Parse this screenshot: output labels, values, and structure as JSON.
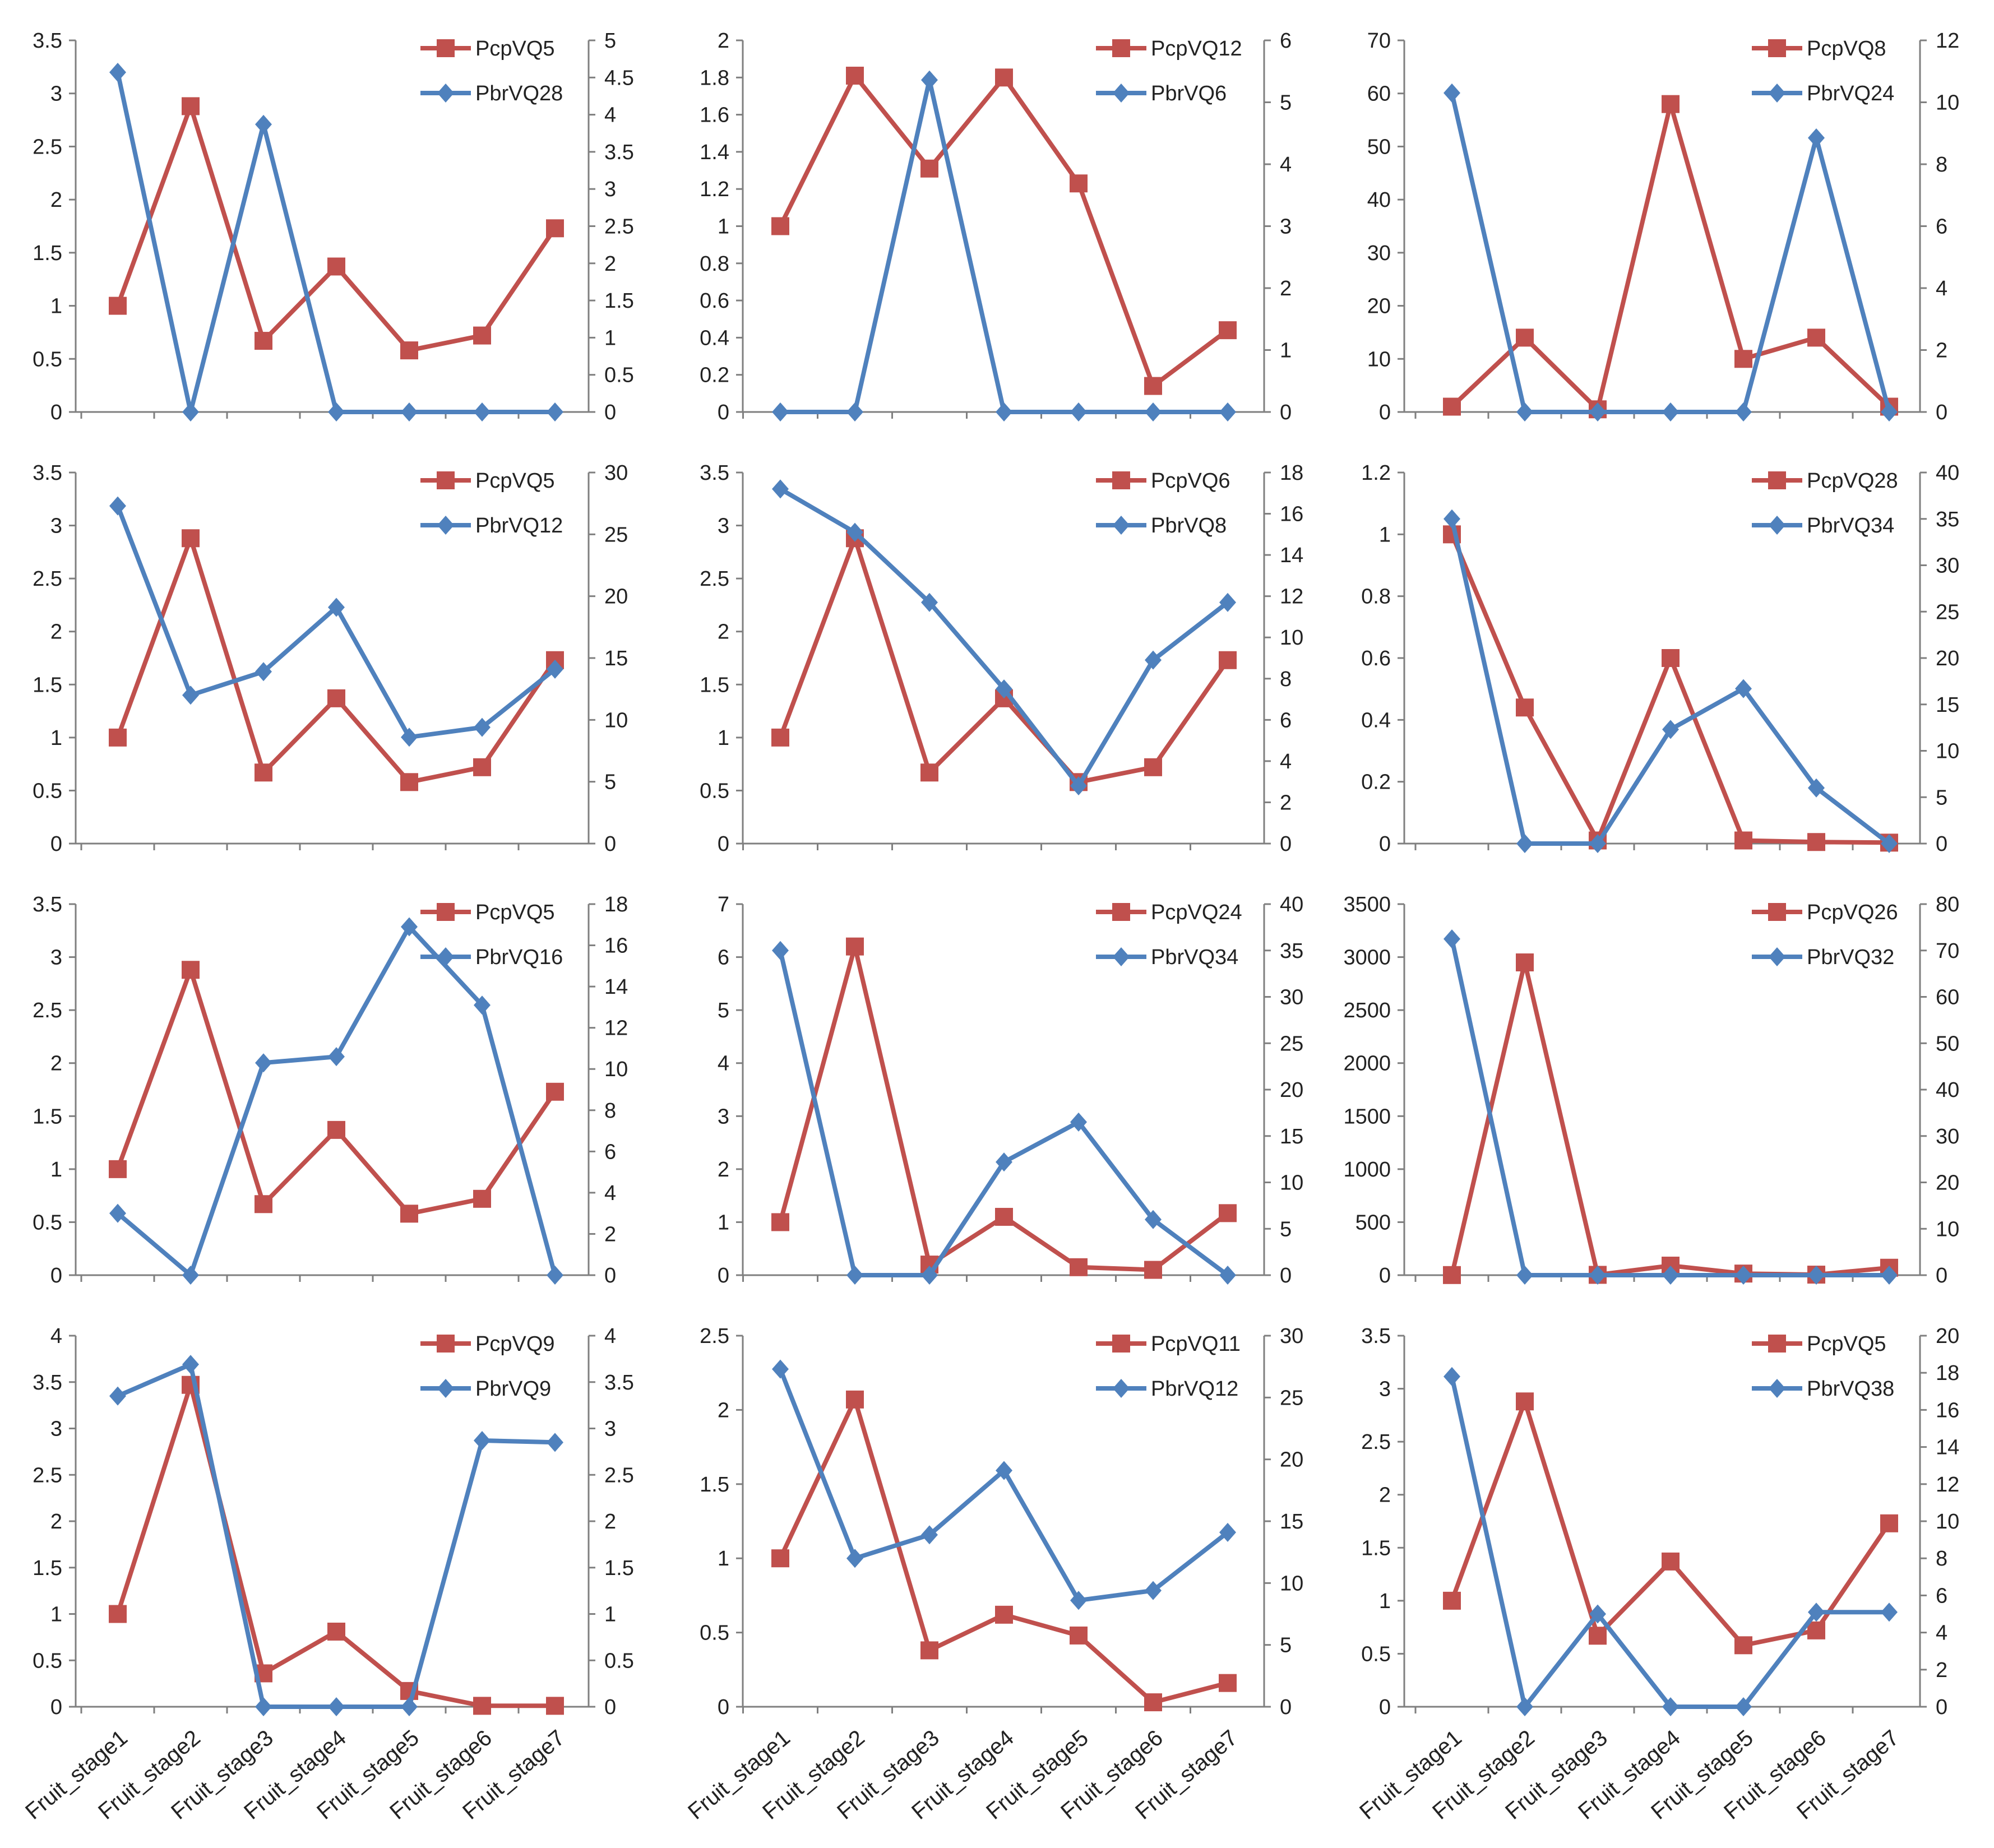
{
  "chart_data": [
    {
      "type": "line",
      "categories": [
        "Fruit_stage1",
        "Fruit_stage2",
        "Fruit_stage3",
        "Fruit_stage4",
        "Fruit_stage5",
        "Fruit_stage6",
        "Fruit_stage7"
      ],
      "series": [
        {
          "name": "PcpVQ5",
          "axis": "left",
          "values": [
            1,
            2.88,
            0.67,
            1.37,
            0.58,
            0.72,
            1.73
          ]
        },
        {
          "name": "PbrVQ28",
          "axis": "right",
          "values": [
            4.57,
            0,
            3.87,
            0,
            0,
            0,
            0
          ]
        }
      ],
      "ylim": [
        0,
        3.5
      ],
      "yticks": [
        0,
        0.5,
        1,
        1.5,
        2,
        2.5,
        3,
        3.5
      ],
      "ytick_labels": [
        "0",
        "0.5",
        "1",
        "1.5",
        "2",
        "2.5",
        "3",
        "3.5"
      ],
      "y2lim": [
        0,
        5
      ],
      "y2ticks": [
        0,
        0.5,
        1,
        1.5,
        2,
        2.5,
        3,
        3.5,
        4,
        4.5,
        5
      ],
      "y2tick_labels": [
        "0",
        "0.5",
        "1",
        "1.5",
        "2",
        "2.5",
        "3",
        "3.5",
        "4",
        "4.5",
        "5"
      ],
      "legend": "top-right"
    },
    {
      "type": "line",
      "categories": [
        "Fruit_stage1",
        "Fruit_stage2",
        "Fruit_stage3",
        "Fruit_stage4",
        "Fruit_stage5",
        "Fruit_stage6",
        "Fruit_stage7"
      ],
      "series": [
        {
          "name": "PcpVQ12",
          "axis": "left",
          "values": [
            1,
            1.81,
            1.31,
            1.8,
            1.23,
            0.14,
            0.44
          ]
        },
        {
          "name": "PbrVQ6",
          "axis": "right",
          "values": [
            0,
            0,
            5.36,
            0,
            0,
            0,
            0
          ]
        }
      ],
      "ylim": [
        0,
        2
      ],
      "yticks": [
        0,
        0.2,
        0.4,
        0.6,
        0.8,
        1,
        1.2,
        1.4,
        1.6,
        1.8,
        2
      ],
      "ytick_labels": [
        "0",
        "0.2",
        "0.4",
        "0.6",
        "0.8",
        "1",
        "1.2",
        "1.4",
        "1.6",
        "1.8",
        "2"
      ],
      "y2lim": [
        0,
        6
      ],
      "y2ticks": [
        0,
        1,
        2,
        3,
        4,
        5,
        6
      ],
      "y2tick_labels": [
        "0",
        "1",
        "2",
        "3",
        "4",
        "5",
        "6"
      ],
      "legend": "top-right"
    },
    {
      "type": "line",
      "categories": [
        "Fruit_stage1",
        "Fruit_stage2",
        "Fruit_stage3",
        "Fruit_stage4",
        "Fruit_stage5",
        "Fruit_stage6",
        "Fruit_stage7"
      ],
      "series": [
        {
          "name": "PcpVQ8",
          "axis": "left",
          "values": [
            1,
            14,
            0.5,
            58,
            10,
            14,
            1
          ]
        },
        {
          "name": "PbrVQ24",
          "axis": "right",
          "values": [
            10.3,
            0,
            0,
            0,
            0,
            8.85,
            0
          ]
        }
      ],
      "ylim": [
        0,
        70
      ],
      "yticks": [
        0,
        10,
        20,
        30,
        40,
        50,
        60,
        70
      ],
      "ytick_labels": [
        "0",
        "10",
        "20",
        "30",
        "40",
        "50",
        "60",
        "70"
      ],
      "y2lim": [
        0,
        12
      ],
      "y2ticks": [
        0,
        2,
        4,
        6,
        8,
        10,
        12
      ],
      "y2tick_labels": [
        "0",
        "2",
        "4",
        "6",
        "8",
        "10",
        "12"
      ],
      "legend": "top-right"
    },
    {
      "type": "line",
      "categories": [
        "Fruit_stage1",
        "Fruit_stage2",
        "Fruit_stage3",
        "Fruit_stage4",
        "Fruit_stage5",
        "Fruit_stage6",
        "Fruit_stage7"
      ],
      "series": [
        {
          "name": "PcpVQ5",
          "axis": "left",
          "values": [
            1,
            2.88,
            0.67,
            1.37,
            0.58,
            0.72,
            1.73
          ]
        },
        {
          "name": "PbrVQ12",
          "axis": "right",
          "values": [
            27.3,
            12,
            13.9,
            19.1,
            8.6,
            9.4,
            14.1
          ]
        }
      ],
      "ylim": [
        0,
        3.5
      ],
      "yticks": [
        0,
        0.5,
        1,
        1.5,
        2,
        2.5,
        3,
        3.5
      ],
      "ytick_labels": [
        "0",
        "0.5",
        "1",
        "1.5",
        "2",
        "2.5",
        "3",
        "3.5"
      ],
      "y2lim": [
        0,
        30
      ],
      "y2ticks": [
        0,
        5,
        10,
        15,
        20,
        25,
        30
      ],
      "y2tick_labels": [
        "0",
        "5",
        "10",
        "15",
        "20",
        "25",
        "30"
      ],
      "legend": "top-right"
    },
    {
      "type": "line",
      "categories": [
        "Fruit_stage1",
        "Fruit_stage2",
        "Fruit_stage3",
        "Fruit_stage4",
        "Fruit_stage5",
        "Fruit_stage6",
        "Fruit_stage7"
      ],
      "series": [
        {
          "name": "PcpVQ6",
          "axis": "left",
          "values": [
            1,
            2.88,
            0.67,
            1.37,
            0.58,
            0.72,
            1.73
          ]
        },
        {
          "name": "PbrVQ8",
          "axis": "right",
          "values": [
            17.2,
            15.1,
            11.7,
            7.5,
            2.8,
            8.9,
            11.7
          ]
        }
      ],
      "ylim": [
        0,
        3.5
      ],
      "yticks": [
        0,
        0.5,
        1,
        1.5,
        2,
        2.5,
        3,
        3.5
      ],
      "ytick_labels": [
        "0",
        "0.5",
        "1",
        "1.5",
        "2",
        "2.5",
        "3",
        "3.5"
      ],
      "y2lim": [
        0,
        18
      ],
      "y2ticks": [
        0,
        2,
        4,
        6,
        8,
        10,
        12,
        14,
        16,
        18
      ],
      "y2tick_labels": [
        "0",
        "2",
        "4",
        "6",
        "8",
        "10",
        "12",
        "14",
        "16",
        "18"
      ],
      "legend": "top-right"
    },
    {
      "type": "line",
      "categories": [
        "Fruit_stage1",
        "Fruit_stage2",
        "Fruit_stage3",
        "Fruit_stage4",
        "Fruit_stage5",
        "Fruit_stage6",
        "Fruit_stage7"
      ],
      "series": [
        {
          "name": "PcpVQ28",
          "axis": "left",
          "values": [
            1,
            0.44,
            0.01,
            0.6,
            0.01,
            0.005,
            0.003
          ]
        },
        {
          "name": "PbrVQ34",
          "axis": "right",
          "values": [
            35,
            0,
            0,
            12.3,
            16.7,
            6,
            0
          ]
        }
      ],
      "ylim": [
        0,
        1.2
      ],
      "yticks": [
        0,
        0.2,
        0.4,
        0.6,
        0.8,
        1,
        1.2
      ],
      "ytick_labels": [
        "0",
        "0.2",
        "0.4",
        "0.6",
        "0.8",
        "1",
        "1.2"
      ],
      "y2lim": [
        0,
        40
      ],
      "y2ticks": [
        0,
        5,
        10,
        15,
        20,
        25,
        30,
        35,
        40
      ],
      "y2tick_labels": [
        "0",
        "5",
        "10",
        "15",
        "20",
        "25",
        "30",
        "35",
        "40"
      ],
      "legend": "top-right"
    },
    {
      "type": "line",
      "categories": [
        "Fruit_stage1",
        "Fruit_stage2",
        "Fruit_stage3",
        "Fruit_stage4",
        "Fruit_stage5",
        "Fruit_stage6",
        "Fruit_stage7"
      ],
      "series": [
        {
          "name": "PcpVQ5",
          "axis": "left",
          "values": [
            1,
            2.88,
            0.67,
            1.37,
            0.58,
            0.72,
            1.73
          ]
        },
        {
          "name": "PbrVQ16",
          "axis": "right",
          "values": [
            3,
            0,
            10.3,
            10.6,
            16.9,
            13.1,
            0
          ]
        }
      ],
      "ylim": [
        0,
        3.5
      ],
      "yticks": [
        0,
        0.5,
        1,
        1.5,
        2,
        2.5,
        3,
        3.5
      ],
      "ytick_labels": [
        "0",
        "0.5",
        "1",
        "1.5",
        "2",
        "2.5",
        "3",
        "3.5"
      ],
      "y2lim": [
        0,
        18
      ],
      "y2ticks": [
        0,
        2,
        4,
        6,
        8,
        10,
        12,
        14,
        16,
        18
      ],
      "y2tick_labels": [
        "0",
        "2",
        "4",
        "6",
        "8",
        "10",
        "12",
        "14",
        "16",
        "18"
      ],
      "legend": "top-right"
    },
    {
      "type": "line",
      "categories": [
        "Fruit_stage1",
        "Fruit_stage2",
        "Fruit_stage3",
        "Fruit_stage4",
        "Fruit_stage5",
        "Fruit_stage6",
        "Fruit_stage7"
      ],
      "series": [
        {
          "name": "PcpVQ24",
          "axis": "left",
          "values": [
            1,
            6.2,
            0.2,
            1.1,
            0.15,
            0.1,
            1.17
          ]
        },
        {
          "name": "PbrVQ34",
          "axis": "right",
          "values": [
            35,
            0,
            0,
            12.2,
            16.5,
            6,
            0
          ]
        }
      ],
      "ylim": [
        0,
        7
      ],
      "yticks": [
        0,
        1,
        2,
        3,
        4,
        5,
        6,
        7
      ],
      "ytick_labels": [
        "0",
        "1",
        "2",
        "3",
        "4",
        "5",
        "6",
        "7"
      ],
      "y2lim": [
        0,
        40
      ],
      "y2ticks": [
        0,
        5,
        10,
        15,
        20,
        25,
        30,
        35,
        40
      ],
      "y2tick_labels": [
        "0",
        "5",
        "10",
        "15",
        "20",
        "25",
        "30",
        "35",
        "40"
      ],
      "legend": "top-right"
    },
    {
      "type": "line",
      "categories": [
        "Fruit_stage1",
        "Fruit_stage2",
        "Fruit_stage3",
        "Fruit_stage4",
        "Fruit_stage5",
        "Fruit_stage6",
        "Fruit_stage7"
      ],
      "series": [
        {
          "name": "PcpVQ26",
          "axis": "left",
          "values": [
            1,
            2950,
            3,
            90,
            15,
            5,
            70
          ]
        },
        {
          "name": "PbrVQ32",
          "axis": "right",
          "values": [
            72.5,
            0,
            0,
            0,
            0,
            0,
            0
          ]
        }
      ],
      "ylim": [
        0,
        3500
      ],
      "yticks": [
        0,
        500,
        1000,
        1500,
        2000,
        2500,
        3000,
        3500
      ],
      "ytick_labels": [
        "0",
        "500",
        "1000",
        "1500",
        "2000",
        "2500",
        "3000",
        "3500"
      ],
      "y2lim": [
        0,
        80
      ],
      "y2ticks": [
        0,
        10,
        20,
        30,
        40,
        50,
        60,
        70,
        80
      ],
      "y2tick_labels": [
        "0",
        "10",
        "20",
        "30",
        "40",
        "50",
        "60",
        "70",
        "80"
      ],
      "legend": "top-right"
    },
    {
      "type": "line",
      "categories": [
        "Fruit_stage1",
        "Fruit_stage2",
        "Fruit_stage3",
        "Fruit_stage4",
        "Fruit_stage5",
        "Fruit_stage6",
        "Fruit_stage7"
      ],
      "series": [
        {
          "name": "PcpVQ9",
          "axis": "left",
          "values": [
            1,
            3.47,
            0.36,
            0.81,
            0.17,
            0.01,
            0.01
          ]
        },
        {
          "name": "PbrVQ9",
          "axis": "right",
          "values": [
            3.35,
            3.69,
            0,
            0,
            0,
            2.87,
            2.85
          ]
        }
      ],
      "ylim": [
        0,
        4
      ],
      "yticks": [
        0,
        0.5,
        1,
        1.5,
        2,
        2.5,
        3,
        3.5,
        4
      ],
      "ytick_labels": [
        "0",
        "0.5",
        "1",
        "1.5",
        "2",
        "2.5",
        "3",
        "3.5",
        "4"
      ],
      "y2lim": [
        0,
        4
      ],
      "y2ticks": [
        0,
        0.5,
        1,
        1.5,
        2,
        2.5,
        3,
        3.5,
        4
      ],
      "y2tick_labels": [
        "0",
        "0.5",
        "1",
        "1.5",
        "2",
        "2.5",
        "3",
        "3.5",
        "4"
      ],
      "legend": "top-right"
    },
    {
      "type": "line",
      "categories": [
        "Fruit_stage1",
        "Fruit_stage2",
        "Fruit_stage3",
        "Fruit_stage4",
        "Fruit_stage5",
        "Fruit_stage6",
        "Fruit_stage7"
      ],
      "series": [
        {
          "name": "PcpVQ11",
          "axis": "left",
          "values": [
            1,
            2.07,
            0.38,
            0.62,
            0.48,
            0.03,
            0.16
          ]
        },
        {
          "name": "PbrVQ12",
          "axis": "right",
          "values": [
            27.3,
            12,
            13.9,
            19.1,
            8.6,
            9.4,
            14.1
          ]
        }
      ],
      "ylim": [
        0,
        2.5
      ],
      "yticks": [
        0,
        0.5,
        1,
        1.5,
        2,
        2.5
      ],
      "ytick_labels": [
        "0",
        "0.5",
        "1",
        "1.5",
        "2",
        "2.5"
      ],
      "y2lim": [
        0,
        30
      ],
      "y2ticks": [
        0,
        5,
        10,
        15,
        20,
        25,
        30
      ],
      "y2tick_labels": [
        "0",
        "5",
        "10",
        "15",
        "20",
        "25",
        "30"
      ],
      "legend": "top-right"
    },
    {
      "type": "line",
      "categories": [
        "Fruit_stage1",
        "Fruit_stage2",
        "Fruit_stage3",
        "Fruit_stage4",
        "Fruit_stage5",
        "Fruit_stage6",
        "Fruit_stage7"
      ],
      "series": [
        {
          "name": "PcpVQ5",
          "axis": "left",
          "values": [
            1,
            2.88,
            0.67,
            1.37,
            0.58,
            0.72,
            1.73
          ]
        },
        {
          "name": "PbrVQ38",
          "axis": "right",
          "values": [
            17.8,
            0,
            5,
            0,
            0,
            5.1,
            5.1
          ]
        }
      ],
      "ylim": [
        0,
        3.5
      ],
      "yticks": [
        0,
        0.5,
        1,
        1.5,
        2,
        2.5,
        3,
        3.5
      ],
      "ytick_labels": [
        "0",
        "0.5",
        "1",
        "1.5",
        "2",
        "2.5",
        "3",
        "3.5"
      ],
      "y2lim": [
        0,
        20
      ],
      "y2ticks": [
        0,
        2,
        4,
        6,
        8,
        10,
        12,
        14,
        16,
        18,
        20
      ],
      "y2tick_labels": [
        "0",
        "2",
        "4",
        "6",
        "8",
        "10",
        "12",
        "14",
        "16",
        "18",
        "20"
      ],
      "legend": "top-right"
    }
  ],
  "colors": {
    "red_series": "#c0504d",
    "blue_series": "#4f81bd",
    "axis": "#7f7f7f"
  }
}
